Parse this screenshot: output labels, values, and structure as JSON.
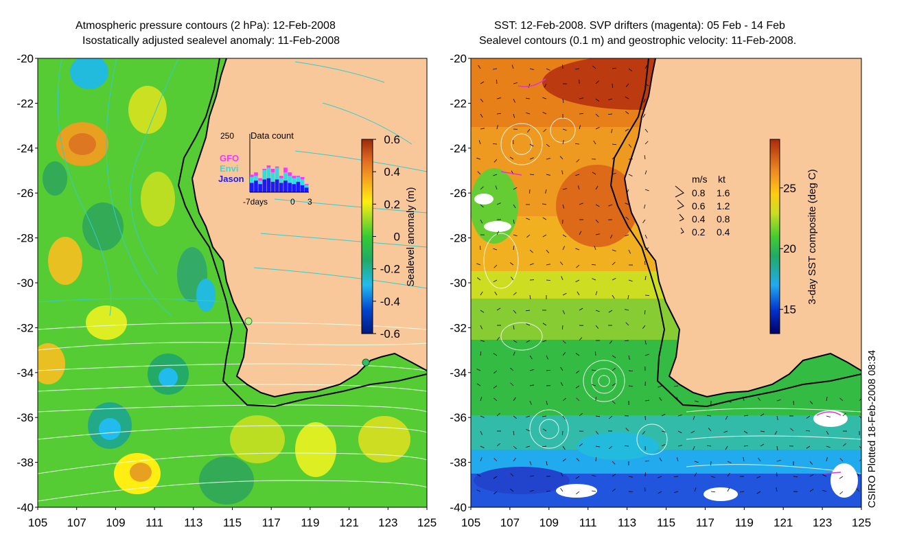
{
  "left_panel": {
    "title_line1": "Atmospheric pressure contours (2 hPa): 12-Feb-2008",
    "title_line2": "Isostatically adjusted sealevel anomaly: 11-Feb-2008",
    "colorbar": {
      "label": "Sealevel anomaly (m)",
      "ticks": [
        "0.6",
        "0.4",
        "0.2",
        "0",
        "-0.2",
        "-0.4",
        "-0.6"
      ],
      "range": [
        -0.6,
        0.6
      ]
    },
    "inset": {
      "title": "Data count",
      "ymax_label": "250",
      "legend": [
        {
          "name": "GFO",
          "color": "#ff33ff"
        },
        {
          "name": "Envi",
          "color": "#33dddd"
        },
        {
          "name": "Jason",
          "color": "#1a1aff"
        }
      ],
      "xtick_labels": [
        "-7days",
        "0",
        "3"
      ],
      "bars": [
        {
          "jason": 40,
          "envi": 25,
          "gfo": 10
        },
        {
          "jason": 50,
          "envi": 20,
          "gfo": 15
        },
        {
          "jason": 35,
          "envi": 15,
          "gfo": 10
        },
        {
          "jason": 55,
          "envi": 40,
          "gfo": 5
        },
        {
          "jason": 60,
          "envi": 45,
          "gfo": 10
        },
        {
          "jason": 45,
          "envi": 40,
          "gfo": 15
        },
        {
          "jason": 55,
          "envi": 50,
          "gfo": 5
        },
        {
          "jason": 40,
          "envi": 20,
          "gfo": 10
        },
        {
          "jason": 50,
          "envi": 35,
          "gfo": 20
        },
        {
          "jason": 40,
          "envi": 30,
          "gfo": 15
        },
        {
          "jason": 35,
          "envi": 25,
          "gfo": 10
        },
        {
          "jason": 45,
          "envi": 20,
          "gfo": 5
        },
        {
          "jason": 30,
          "envi": 25,
          "gfo": 10
        },
        {
          "jason": 20,
          "envi": 10,
          "gfo": 5
        }
      ]
    }
  },
  "right_panel": {
    "title_line1": "SST: 12-Feb-2008. SVP drifters (magenta): 05 Feb - 14 Feb",
    "title_line2": "Sealevel contours (0.1 m) and geostrophic velocity: 11-Feb-2008.",
    "colorbar": {
      "label": "3-day SST composite (deg C)",
      "ticks": [
        "25",
        "20",
        "15"
      ],
      "range": [
        13,
        29
      ]
    },
    "velocity_legend": {
      "header_ms": "m/s",
      "header_kt": "kt",
      "rows": [
        {
          "ms": "0.8",
          "kt": "1.6"
        },
        {
          "ms": "0.6",
          "kt": "1.2"
        },
        {
          "ms": "0.4",
          "kt": "0.8"
        },
        {
          "ms": "0.2",
          "kt": "0.4"
        }
      ]
    }
  },
  "axes": {
    "lat_ticks": [
      "-20",
      "-22",
      "-24",
      "-26",
      "-28",
      "-30",
      "-32",
      "-34",
      "-36",
      "-38",
      "-40"
    ],
    "lon_ticks": [
      "105",
      "107",
      "109",
      "111",
      "113",
      "115",
      "117",
      "119",
      "121",
      "123",
      "125"
    ],
    "lat_range": [
      -40,
      -20
    ],
    "lon_range": [
      105,
      125
    ]
  },
  "credit": "CSIRO Plotted 18-Feb-2008 08:34",
  "colors": {
    "land": "#f9c89a",
    "coast": "#000000",
    "pressure_contour": "#33cccc",
    "sealevel_contour": "#ffffff",
    "drifter": "#dd33dd"
  }
}
